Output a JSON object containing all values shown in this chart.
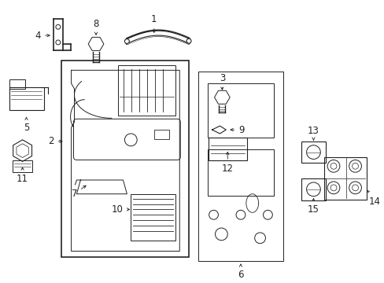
{
  "background_color": "#ffffff",
  "line_color": "#222222",
  "label_fontsize": 8.5,
  "figsize": [
    4.89,
    3.6
  ],
  "dpi": 100
}
